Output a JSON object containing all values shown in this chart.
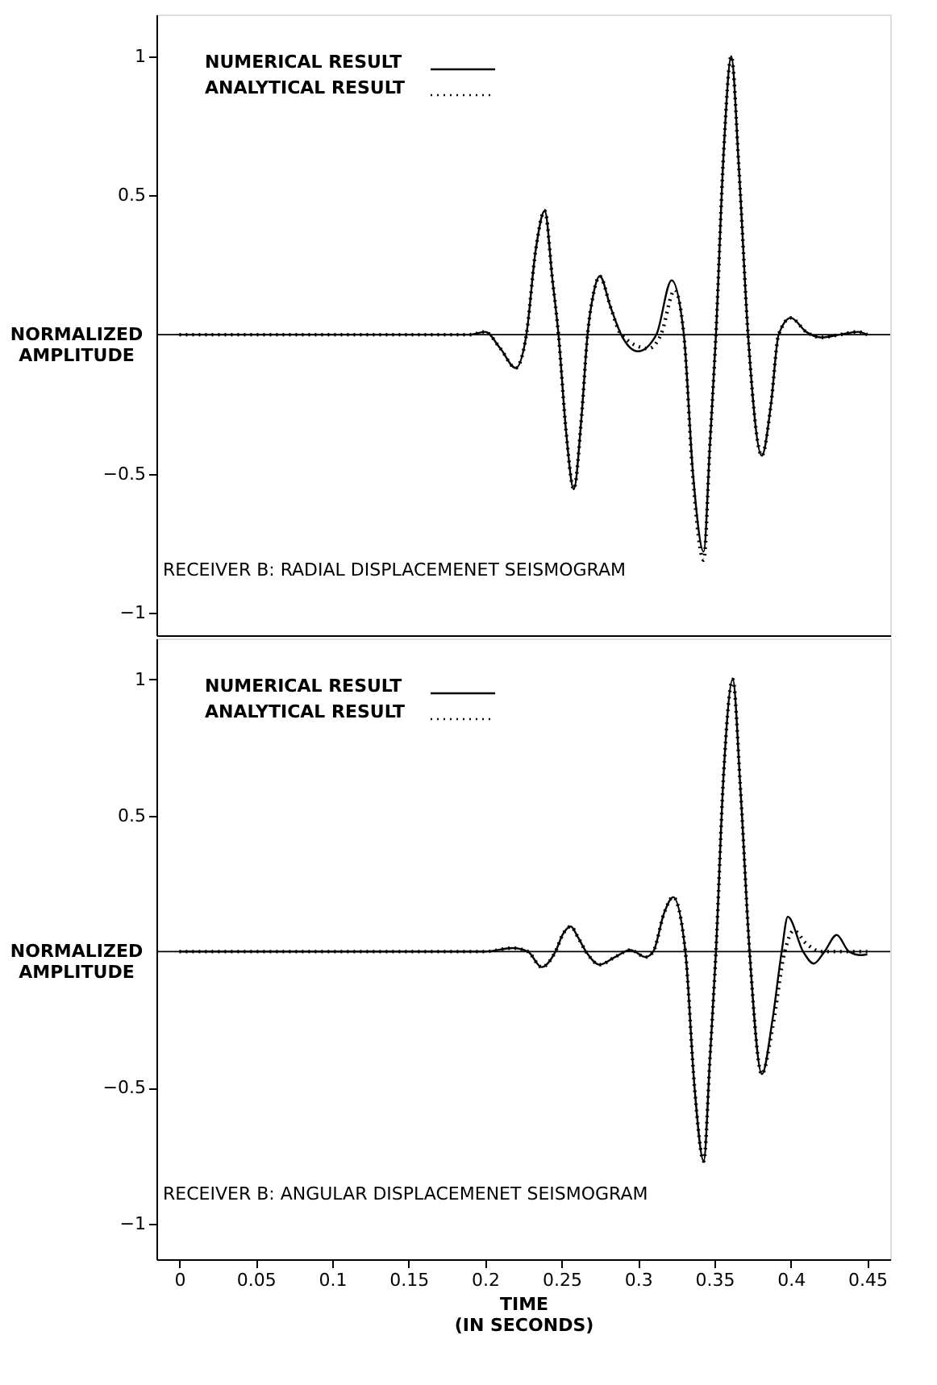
{
  "chart_data": [
    {
      "type": "line",
      "ylabel": "NORMALIZED\nAMPLITUDE",
      "xlim": [
        -0.015,
        0.465
      ],
      "ylim": [
        -1.08,
        1.15
      ],
      "yticks": [
        -1,
        -0.5,
        0.5,
        1
      ],
      "tick_labels": "y",
      "legend": "top left",
      "grid": false,
      "ref_lines": [
        {
          "axis": "y",
          "value": 0
        }
      ],
      "annotations": [
        "RECEIVER B: RADIAL DISPLACEMENET SEISMOGRAM"
      ],
      "series": [
        {
          "name": "NUMERICAL RESULT",
          "color": "#000000",
          "line_style": "solid",
          "x": [
            0,
            0.1,
            0.19,
            0.2,
            0.21,
            0.22,
            0.227,
            0.233,
            0.239,
            0.244,
            0.248,
            0.253,
            0.258,
            0.263,
            0.267,
            0.271,
            0.275,
            0.282,
            0.289,
            0.3,
            0.312,
            0.322,
            0.33,
            0.336,
            0.343,
            0.347,
            0.351,
            0.356,
            0.361,
            0.366,
            0.372,
            0.381,
            0.387,
            0.392,
            0.4,
            0.41,
            0.42,
            0.432,
            0.444,
            0.45
          ],
          "values": [
            0,
            0,
            0,
            0.01,
            -0.05,
            -0.12,
            0,
            0.3,
            0.445,
            0.2,
            0,
            -0.35,
            -0.555,
            -0.3,
            0,
            0.15,
            0.21,
            0.1,
            0,
            -0.06,
            0,
            0.195,
            0,
            -0.5,
            -0.78,
            -0.4,
            0,
            0.65,
            1.0,
            0.6,
            0,
            -0.435,
            -0.25,
            0,
            0.06,
            0.01,
            -0.01,
            0,
            0.01,
            0
          ]
        },
        {
          "name": "ANALYTICAL RESULT",
          "color": "#000000",
          "line_style": "dotted",
          "x": [
            0,
            0.1,
            0.19,
            0.2,
            0.21,
            0.22,
            0.227,
            0.233,
            0.239,
            0.244,
            0.248,
            0.253,
            0.258,
            0.263,
            0.267,
            0.271,
            0.275,
            0.282,
            0.289,
            0.307,
            0.315,
            0.324,
            0.33,
            0.336,
            0.343,
            0.347,
            0.351,
            0.356,
            0.361,
            0.366,
            0.372,
            0.381,
            0.387,
            0.392,
            0.4,
            0.41,
            0.42,
            0.432,
            0.444,
            0.45
          ],
          "values": [
            0,
            0,
            0,
            0.01,
            -0.05,
            -0.12,
            0,
            0.3,
            0.445,
            0.2,
            0,
            -0.35,
            -0.555,
            -0.3,
            0,
            0.15,
            0.21,
            0.1,
            0,
            -0.05,
            0,
            0.16,
            0,
            -0.52,
            -0.81,
            -0.4,
            0,
            0.65,
            1.0,
            0.6,
            0,
            -0.435,
            -0.25,
            0,
            0.06,
            0.01,
            -0.01,
            0,
            0.01,
            0
          ]
        }
      ]
    },
    {
      "type": "line",
      "xlabel": "TIME\n(IN SECONDS)",
      "ylabel": "NORMALIZED\nAMPLITUDE",
      "xlim": [
        -0.015,
        0.465
      ],
      "xticks": [
        0,
        0.05,
        0.1,
        0.15,
        0.2,
        0.25,
        0.3,
        0.35,
        0.4,
        0.45
      ],
      "ylim": [
        -1.13,
        1.15
      ],
      "yticks": [
        -1,
        -0.5,
        0.5,
        1
      ],
      "legend": "top left",
      "grid": false,
      "ref_lines": [
        {
          "axis": "y",
          "value": 0
        }
      ],
      "annotations": [
        "RECEIVER B: ANGULAR DISPLACEMENET SEISMOGRAM"
      ],
      "series": [
        {
          "name": "NUMERICAL RESULT",
          "color": "#000000",
          "line_style": "solid",
          "x": [
            0,
            0.1,
            0.2,
            0.218,
            0.228,
            0.237,
            0.246,
            0.251,
            0.256,
            0.261,
            0.266,
            0.275,
            0.285,
            0.295,
            0.305,
            0.31,
            0.317,
            0.323,
            0.331,
            0.337,
            0.343,
            0.347,
            0.351,
            0.356,
            0.362,
            0.367,
            0.373,
            0.381,
            0.388,
            0.394,
            0.398,
            0.408,
            0.415,
            0.422,
            0.43,
            0.438,
            0.446,
            0.45
          ],
          "values": [
            0,
            0,
            0,
            0.013,
            0,
            -0.057,
            0,
            0.065,
            0.092,
            0.05,
            0,
            -0.048,
            -0.02,
            0.006,
            -0.02,
            0,
            0.14,
            0.2,
            0,
            -0.5,
            -0.77,
            -0.4,
            0,
            0.65,
            1.0,
            0.6,
            0,
            -0.45,
            -0.25,
            0,
            0.128,
            0,
            -0.044,
            0,
            0.061,
            0,
            -0.013,
            -0.01
          ]
        },
        {
          "name": "ANALYTICAL RESULT",
          "color": "#000000",
          "line_style": "dotted",
          "x": [
            0,
            0.1,
            0.2,
            0.218,
            0.228,
            0.237,
            0.246,
            0.251,
            0.256,
            0.261,
            0.266,
            0.275,
            0.285,
            0.295,
            0.305,
            0.31,
            0.317,
            0.323,
            0.331,
            0.337,
            0.343,
            0.347,
            0.351,
            0.356,
            0.362,
            0.367,
            0.373,
            0.381,
            0.388,
            0.396,
            0.402,
            0.41,
            0.42,
            0.45
          ],
          "values": [
            0,
            0,
            0,
            0.013,
            0,
            -0.057,
            0,
            0.065,
            0.092,
            0.05,
            0,
            -0.048,
            -0.02,
            0.006,
            -0.02,
            0,
            0.14,
            0.2,
            0,
            -0.5,
            -0.77,
            -0.4,
            0,
            0.65,
            1.0,
            0.6,
            0,
            -0.45,
            -0.28,
            0,
            0.077,
            0.03,
            0,
            0
          ]
        }
      ]
    }
  ]
}
